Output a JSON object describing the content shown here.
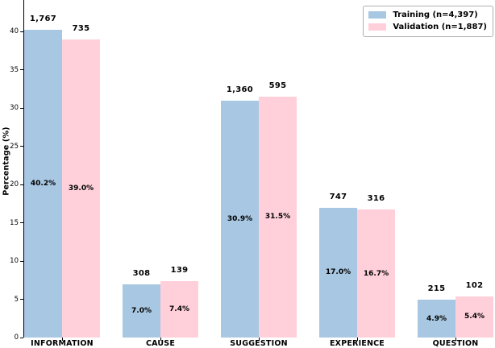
{
  "chart_data": {
    "type": "bar",
    "title": "",
    "xlabel": "",
    "ylabel": "Percentage (%)",
    "ylim": [
      0,
      44
    ],
    "yticks": [
      0,
      5,
      10,
      15,
      20,
      25,
      30,
      35,
      40
    ],
    "grid": false,
    "legend_position": "upper right",
    "categories": [
      "INFORMATION",
      "CAUSE",
      "SUGGESTION",
      "EXPERIENCE",
      "QUESTION"
    ],
    "series": [
      {
        "key": "training",
        "name": "Training (n=4,397)",
        "color": "#a8c7e2",
        "values": [
          40.2,
          7.0,
          30.9,
          17.0,
          4.9
        ],
        "counts": [
          "1,767",
          "308",
          "1,360",
          "747",
          "215"
        ],
        "pct_labels": [
          "40.2%",
          "7.0%",
          "30.9%",
          "17.0%",
          "4.9%"
        ]
      },
      {
        "key": "validation",
        "name": "Validation (n=1,887)",
        "color": "#ffd0da",
        "values": [
          39.0,
          7.4,
          31.5,
          16.7,
          5.4
        ],
        "counts": [
          "735",
          "139",
          "595",
          "316",
          "102"
        ],
        "pct_labels": [
          "39.0%",
          "7.4%",
          "31.5%",
          "16.7%",
          "5.4%"
        ]
      }
    ]
  }
}
